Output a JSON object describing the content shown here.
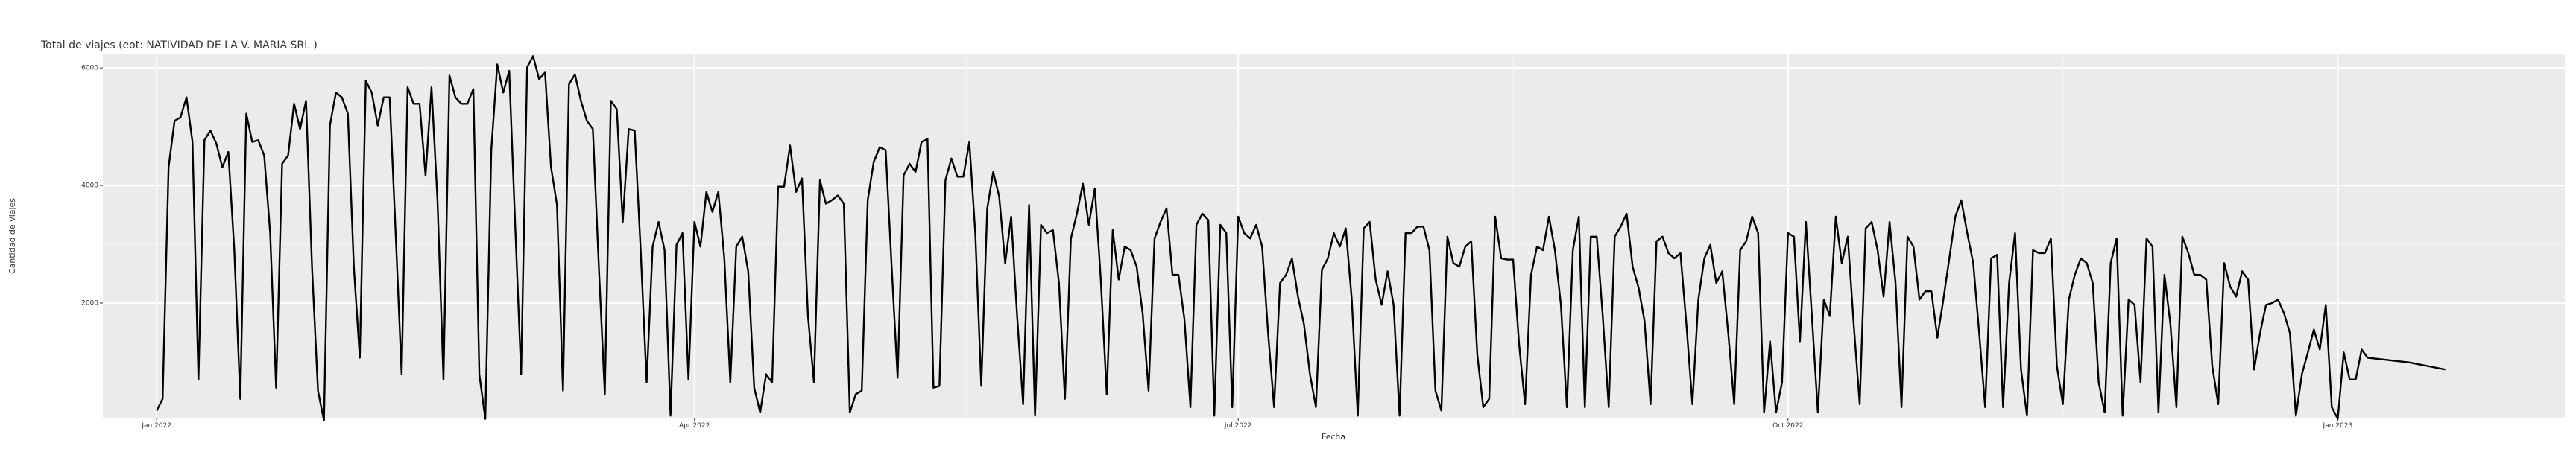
{
  "chart_data": {
    "type": "line",
    "title": "Total de viajes (eot: NATIVIDAD DE LA V. MARIA SRL )",
    "x_label": "Fecha",
    "y_label": "Cantidad de viajes",
    "color": "#000000",
    "grid": true,
    "xlim": [
      -9,
      403
    ],
    "ylim": [
      50,
      6230
    ],
    "xticks": [
      {
        "value": 0,
        "label": "Jan 2022"
      },
      {
        "value": 90,
        "label": "Apr 2022"
      },
      {
        "value": 181,
        "label": "Jul 2022"
      },
      {
        "value": 273,
        "label": "Oct 2022"
      },
      {
        "value": 365,
        "label": "Jan 2023"
      }
    ],
    "yticks": [
      2000,
      4000,
      6000
    ],
    "x": [
      0,
      1,
      2,
      3,
      4,
      5,
      6,
      7,
      8,
      9,
      10,
      11,
      12,
      13,
      14,
      15,
      16,
      17,
      18,
      19,
      20,
      21,
      22,
      23,
      24,
      25,
      26,
      27,
      28,
      29,
      30,
      31,
      32,
      33,
      34,
      35,
      36,
      37,
      38,
      39,
      40,
      41,
      42,
      43,
      44,
      45,
      46,
      47,
      48,
      49,
      50,
      51,
      52,
      53,
      54,
      55,
      56,
      57,
      58,
      59,
      60,
      61,
      62,
      63,
      64,
      65,
      66,
      67,
      68,
      69,
      70,
      71,
      72,
      73,
      74,
      75,
      76,
      77,
      78,
      79,
      80,
      81,
      82,
      83,
      84,
      85,
      86,
      87,
      88,
      89,
      90,
      91,
      92,
      93,
      94,
      95,
      96,
      97,
      98,
      99,
      100,
      101,
      102,
      103,
      104,
      105,
      106,
      107,
      108,
      109,
      110,
      111,
      112,
      113,
      114,
      115,
      116,
      117,
      118,
      119,
      120,
      121,
      122,
      123,
      124,
      125,
      126,
      127,
      128,
      129,
      130,
      131,
      132,
      133,
      134,
      135,
      136,
      137,
      138,
      139,
      140,
      141,
      142,
      143,
      144,
      145,
      146,
      147,
      148,
      149,
      150,
      151,
      152,
      153,
      154,
      155,
      156,
      157,
      158,
      159,
      160,
      161,
      162,
      163,
      164,
      165,
      166,
      167,
      168,
      169,
      170,
      171,
      172,
      173,
      174,
      175,
      176,
      177,
      178,
      179,
      180,
      181,
      182,
      183,
      184,
      185,
      186,
      187,
      188,
      189,
      190,
      191,
      192,
      193,
      194,
      195,
      196,
      197,
      198,
      199,
      200,
      201,
      202,
      203,
      204,
      205,
      206,
      207,
      208,
      209,
      210,
      211,
      212,
      213,
      214,
      215,
      216,
      217,
      218,
      219,
      220,
      221,
      222,
      223,
      224,
      225,
      226,
      227,
      228,
      229,
      230,
      231,
      232,
      233,
      234,
      235,
      236,
      237,
      238,
      239,
      240,
      241,
      242,
      243,
      244,
      245,
      246,
      247,
      248,
      249,
      250,
      251,
      252,
      253,
      254,
      255,
      256,
      257,
      258,
      259,
      260,
      261,
      262,
      263,
      264,
      265,
      266,
      267,
      268,
      269,
      270,
      271,
      272,
      273,
      274,
      275,
      276,
      277,
      278,
      279,
      280,
      281,
      282,
      283,
      284,
      285,
      286,
      287,
      288,
      289,
      290,
      291,
      292,
      293,
      294,
      295,
      296,
      297,
      298,
      299,
      300,
      301,
      302,
      303,
      304,
      305,
      306,
      307,
      308,
      309,
      310,
      311,
      312,
      313,
      314,
      315,
      316,
      317,
      318,
      319,
      320,
      321,
      322,
      323,
      324,
      325,
      326,
      327,
      328,
      329,
      330,
      331,
      332,
      333,
      334,
      335,
      336,
      337,
      338,
      339,
      340,
      341,
      342,
      343,
      344,
      345,
      346,
      347,
      348,
      349,
      350,
      351,
      352,
      353,
      354,
      355,
      356,
      357,
      358,
      359,
      360,
      361,
      362,
      363,
      364,
      365,
      366,
      367,
      368,
      369,
      370,
      377,
      383
    ],
    "values": [
      170,
      370,
      4310,
      5100,
      5160,
      5500,
      4740,
      700,
      4770,
      4935,
      4710,
      4310,
      4570,
      2900,
      370,
      5220,
      4740,
      4770,
      4510,
      3190,
      560,
      4370,
      4510,
      5390,
      4960,
      5440,
      2620,
      510,
      0,
      5020,
      5580,
      5500,
      5220,
      2620,
      1070,
      5780,
      5580,
      5020,
      5500,
      5500,
      3190,
      790,
      5670,
      5390,
      5390,
      4170,
      5670,
      3750,
      700,
      5870,
      5500,
      5390,
      5390,
      5640,
      790,
      30,
      4600,
      6060,
      5580,
      5950,
      3330,
      790,
      6010,
      6200,
      5810,
      5920,
      4310,
      3670,
      510,
      5720,
      5890,
      5440,
      5100,
      4960,
      2620,
      450,
      5440,
      5300,
      3380,
      4960,
      4935,
      2900,
      650,
      2960,
      3380,
      2900,
      85,
      2990,
      3190,
      700,
      3380,
      2960,
      3890,
      3550,
      3890,
      2760,
      650,
      2960,
      3130,
      2540,
      560,
      140,
      790,
      650,
      3980,
      3980,
      4680,
      3890,
      4120,
      1780,
      650,
      4090,
      3690,
      3750,
      3830,
      3690,
      140,
      450,
      510,
      3750,
      4400,
      4650,
      4600,
      2620,
      730,
      4170,
      4370,
      4230,
      4740,
      4790,
      560,
      590,
      4090,
      4460,
      4150,
      4150,
      4740,
      3190,
      590,
      3610,
      4230,
      3810,
      2680,
      3470,
      1780,
      280,
      3670,
      85,
      3330,
      3190,
      3240,
      2340,
      370,
      3100,
      3520,
      4030,
      3330,
      3950,
      2400,
      450,
      3240,
      2400,
      2960,
      2900,
      2620,
      1830,
      510,
      3100,
      3380,
      3610,
      2480,
      2480,
      1720,
      230,
      3330,
      3520,
      3410,
      85,
      3330,
      3190,
      230,
      3470,
      3190,
      3100,
      3330,
      2960,
      1490,
      230,
      2340,
      2480,
      2760,
      2110,
      1640,
      790,
      230,
      2570,
      2760,
      3190,
      2960,
      3270,
      2060,
      85,
      3270,
      3380,
      2400,
      1970,
      2540,
      1970,
      85,
      3190,
      3190,
      3300,
      3300,
      2900,
      510,
      170,
      3130,
      2680,
      2620,
      2960,
      3050,
      1130,
      230,
      370,
      3470,
      2760,
      2740,
      2740,
      1300,
      280,
      2480,
      2960,
      2900,
      3470,
      2900,
      1970,
      230,
      2900,
      3470,
      230,
      3130,
      3130,
      1780,
      230,
      3130,
      3300,
      3520,
      2620,
      2260,
      1690,
      280,
      3050,
      3130,
      2850,
      2760,
      2850,
      1640,
      280,
      2060,
      2760,
      2990,
      2340,
      2540,
      1490,
      280,
      2900,
      3050,
      3470,
      3190,
      140,
      1350,
      140,
      650,
      3190,
      3130,
      1350,
      3380,
      1780,
      140,
      2060,
      1780,
      3470,
      2680,
      3130,
      1640,
      280,
      3270,
      3380,
      2900,
      2110,
      3380,
      2340,
      230,
      3130,
      2960,
      2060,
      2200,
      2200,
      1410,
      2060,
      2760,
      3470,
      3750,
      3190,
      2680,
      1490,
      230,
      2760,
      2820,
      230,
      2340,
      3190,
      870,
      85,
      2900,
      2850,
      2850,
      3100,
      930,
      280,
      2060,
      2480,
      2760,
      2680,
      2340,
      650,
      140,
      2680,
      3100,
      85,
      2060,
      1970,
      650,
      3100,
      2960,
      140,
      2480,
      1640,
      230,
      3130,
      2850,
      2480,
      2480,
      2400,
      930,
      280,
      2680,
      2280,
      2110,
      2540,
      2400,
      870,
      1490,
      1970,
      2000,
      2060,
      1830,
      1490,
      85,
      790,
      1160,
      1550,
      1210,
      1970,
      230,
      30,
      1160,
      700,
      700,
      1210,
      1070,
      990,
      870
    ]
  }
}
